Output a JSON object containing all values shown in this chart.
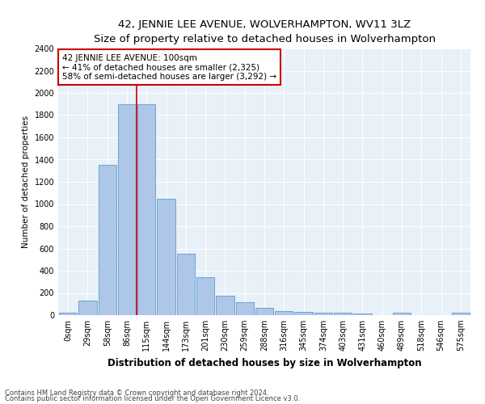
{
  "title": "42, JENNIE LEE AVENUE, WOLVERHAMPTON, WV11 3LZ",
  "subtitle": "Size of property relative to detached houses in Wolverhampton",
  "xlabel": "Distribution of detached houses by size in Wolverhampton",
  "ylabel": "Number of detached properties",
  "bar_labels": [
    "0sqm",
    "29sqm",
    "58sqm",
    "86sqm",
    "115sqm",
    "144sqm",
    "173sqm",
    "201sqm",
    "230sqm",
    "259sqm",
    "288sqm",
    "316sqm",
    "345sqm",
    "374sqm",
    "403sqm",
    "431sqm",
    "460sqm",
    "489sqm",
    "518sqm",
    "546sqm",
    "575sqm"
  ],
  "bar_values": [
    20,
    130,
    1350,
    1900,
    1900,
    1050,
    550,
    340,
    175,
    115,
    65,
    40,
    30,
    25,
    20,
    15,
    0,
    20,
    0,
    0,
    20
  ],
  "bar_color": "#aec6e8",
  "bar_edge_color": "#5b9bd5",
  "red_line_x": 3.5,
  "annotation_text": "42 JENNIE LEE AVENUE: 100sqm\n← 41% of detached houses are smaller (2,325)\n58% of semi-detached houses are larger (3,292) →",
  "annotation_box_color": "#ffffff",
  "annotation_box_edge": "#cc0000",
  "ylim": [
    0,
    2400
  ],
  "yticks": [
    0,
    200,
    400,
    600,
    800,
    1000,
    1200,
    1400,
    1600,
    1800,
    2000,
    2200,
    2400
  ],
  "bg_color": "#e8f0f8",
  "footer1": "Contains HM Land Registry data © Crown copyright and database right 2024.",
  "footer2": "Contains public sector information licensed under the Open Government Licence v3.0.",
  "title_fontsize": 9.5,
  "subtitle_fontsize": 8.5,
  "tick_fontsize": 7,
  "ylabel_fontsize": 7.5,
  "xlabel_fontsize": 8.5,
  "annot_fontsize": 7.5,
  "footer_fontsize": 6
}
